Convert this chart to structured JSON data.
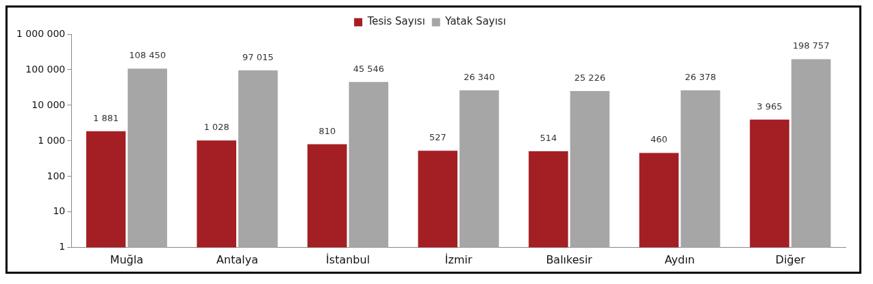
{
  "chart_data": {
    "type": "bar",
    "categories": [
      "Muğla",
      "Antalya",
      "İstanbul",
      "İzmir",
      "Balıkesir",
      "Aydın",
      "Diğer"
    ],
    "series": [
      {
        "name": "Tesis Sayısı",
        "color": "#a31f24",
        "values": [
          1881,
          1028,
          810,
          527,
          514,
          460,
          3965
        ],
        "value_labels": [
          "1 881",
          "1 028",
          "810",
          "527",
          "514",
          "460",
          "3 965"
        ]
      },
      {
        "name": "Yatak Sayısı",
        "color": "#a6a6a6",
        "values": [
          108450,
          97015,
          45546,
          26340,
          25226,
          26378,
          198757
        ],
        "value_labels": [
          "108 450",
          "97 015",
          "45 546",
          "26 340",
          "25 226",
          "26 378",
          "198 757"
        ]
      }
    ],
    "log": "y",
    "ylim": [
      1,
      1000000
    ],
    "yticks": [
      1,
      10,
      100,
      {
        "value": 1000,
        "label": "1 000"
      },
      {
        "value": 10000,
        "label": "10 000"
      },
      {
        "value": 100000,
        "label": "100 000"
      },
      {
        "value": 1000000,
        "label": "1 000 000"
      }
    ],
    "grid": false,
    "legend": "top"
  }
}
